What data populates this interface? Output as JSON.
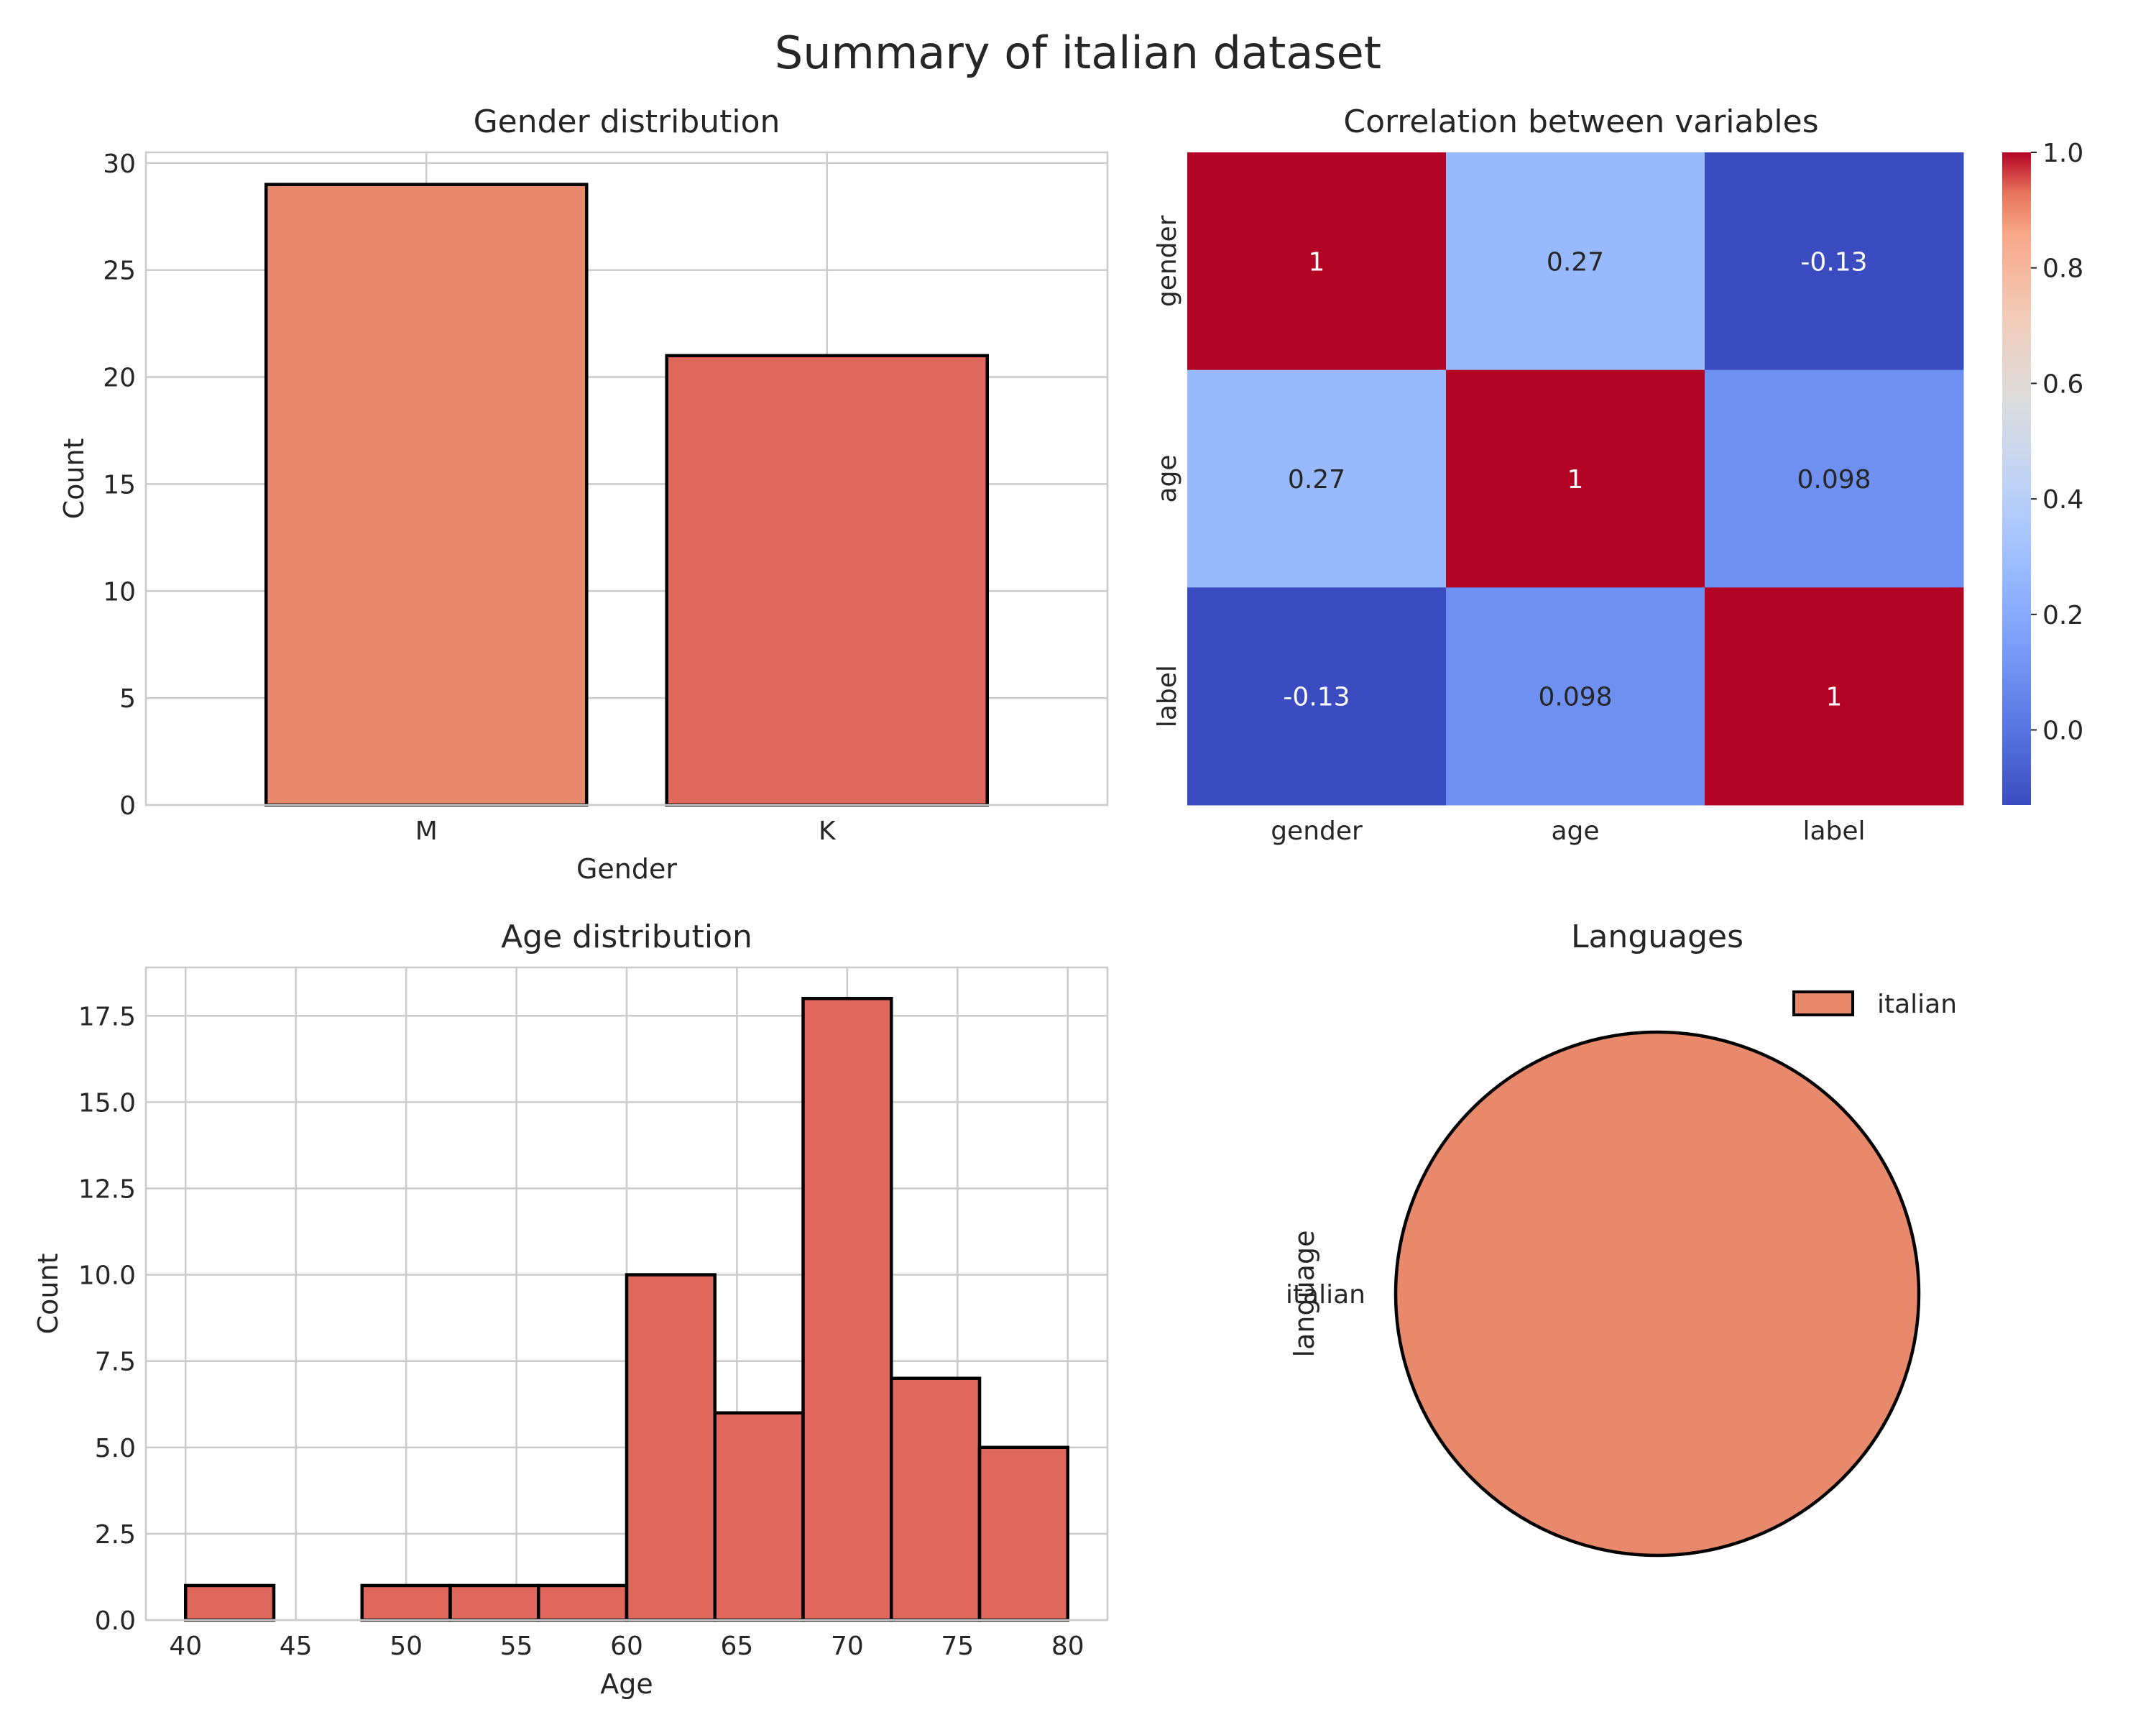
{
  "figure": {
    "title": "Summary of italian dataset"
  },
  "colors": {
    "bar_primary": "#e9896c",
    "bar_secondary": "#e0675c",
    "hist": "#e0675c",
    "pie": "#e9896c",
    "edge": "#000000",
    "grid": "#cccccc",
    "text": "#262626",
    "colormap": "coolwarm"
  },
  "chart_data": [
    {
      "type": "bar",
      "title": "Gender distribution",
      "xlabel": "Gender",
      "ylabel": "Count",
      "categories": [
        "M",
        "K"
      ],
      "values": [
        29,
        21
      ],
      "ylim": [
        0,
        30.5
      ],
      "yticks": [
        0,
        5,
        10,
        15,
        20,
        25,
        30
      ],
      "grid": true
    },
    {
      "type": "heatmap",
      "title": "Correlation between variables",
      "xlabel": "",
      "ylabel": "",
      "rows": [
        "gender",
        "age",
        "label"
      ],
      "columns": [
        "gender",
        "age",
        "label"
      ],
      "values": [
        [
          1,
          0.27,
          -0.13
        ],
        [
          0.27,
          1,
          0.098
        ],
        [
          -0.13,
          0.098,
          1
        ]
      ],
      "annotations": [
        [
          "1",
          "0.27",
          "-0.13"
        ],
        [
          "0.27",
          "1",
          "0.098"
        ],
        [
          "-0.13",
          "0.098",
          "1"
        ]
      ],
      "colorbar": {
        "range": [
          -0.13,
          1.0
        ],
        "ticks": [
          "0.0",
          "0.2",
          "0.4",
          "0.6",
          "0.8",
          "1.0"
        ],
        "tick_values": [
          0,
          0.2,
          0.4,
          0.6,
          0.8,
          1.0
        ]
      }
    },
    {
      "type": "bar",
      "subtype": "histogram",
      "title": "Age distribution",
      "xlabel": "Age",
      "ylabel": "Count",
      "bin_edges": [
        40,
        44,
        48,
        52,
        56,
        60,
        64,
        68,
        72,
        76,
        80
      ],
      "counts": [
        1,
        0,
        1,
        1,
        1,
        10,
        6,
        18,
        7,
        5
      ],
      "xlim": [
        38.2,
        81.8
      ],
      "ylim": [
        0,
        18.9
      ],
      "xticks": [
        40,
        45,
        50,
        55,
        60,
        65,
        70,
        75,
        80
      ],
      "yticks": [
        "0.0",
        "2.5",
        "5.0",
        "7.5",
        "10.0",
        "12.5",
        "15.0",
        "17.5"
      ],
      "grid": true
    },
    {
      "type": "pie",
      "title": "Languages",
      "ylabel": "language",
      "labels": [
        "italian"
      ],
      "values": [
        50
      ],
      "legend": {
        "entries": [
          "italian"
        ],
        "placement": "top-right"
      }
    }
  ]
}
